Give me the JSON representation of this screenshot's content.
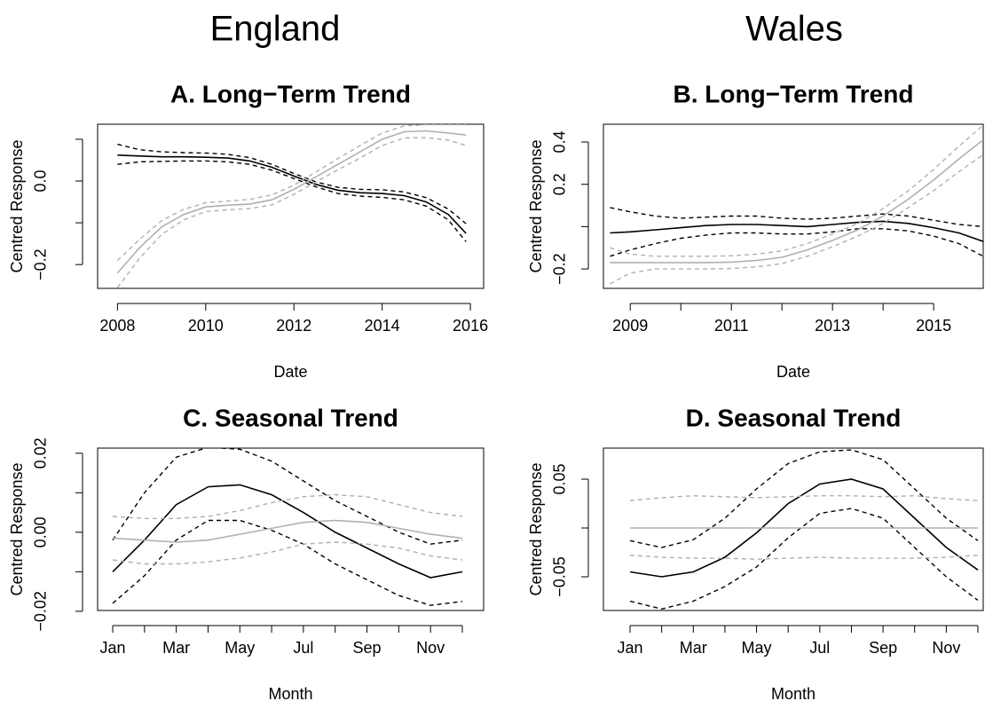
{
  "column_titles": [
    "England",
    "Wales"
  ],
  "chart_data": [
    {
      "type": "line",
      "title": "A. Long−Term Trend",
      "xlabel": "Date",
      "ylabel": "Centred Response",
      "x": [
        2008,
        2008.5,
        2009,
        2009.5,
        2010,
        2010.5,
        2011,
        2011.5,
        2012,
        2012.5,
        2013,
        2013.5,
        2014,
        2014.5,
        2015,
        2015.5,
        2015.9
      ],
      "xlim": [
        2007.55,
        2016.3
      ],
      "xticks": [
        2008,
        2010,
        2012,
        2014,
        2016
      ],
      "ylim": [
        -0.257,
        0.136
      ],
      "yticks": [
        {
          "value": -0.2,
          "label": "−0.2"
        },
        {
          "value": 0,
          "label": "0.0"
        }
      ],
      "yminor_ticks": [
        -0.1,
        0.1
      ],
      "series": [
        {
          "color": "#000000",
          "dashed": false,
          "values": [
            0.062,
            0.06,
            0.058,
            0.058,
            0.057,
            0.055,
            0.048,
            0.033,
            0.012,
            -0.008,
            -0.022,
            -0.028,
            -0.03,
            -0.035,
            -0.05,
            -0.08,
            -0.125
          ]
        },
        {
          "color": "#000000",
          "dashed": true,
          "values": [
            0.088,
            0.075,
            0.07,
            0.068,
            0.067,
            0.064,
            0.056,
            0.04,
            0.018,
            -0.002,
            -0.015,
            -0.02,
            -0.021,
            -0.026,
            -0.04,
            -0.067,
            -0.102
          ]
        },
        {
          "color": "#000000",
          "dashed": true,
          "values": [
            0.04,
            0.046,
            0.047,
            0.048,
            0.048,
            0.046,
            0.04,
            0.026,
            0.006,
            -0.014,
            -0.03,
            -0.036,
            -0.039,
            -0.045,
            -0.06,
            -0.093,
            -0.145
          ]
        },
        {
          "color": "#b0b0b0",
          "dashed": false,
          "values": [
            -0.22,
            -0.16,
            -0.11,
            -0.08,
            -0.062,
            -0.058,
            -0.055,
            -0.045,
            -0.02,
            0.01,
            0.04,
            0.07,
            0.1,
            0.118,
            0.12,
            0.115,
            0.11
          ]
        },
        {
          "color": "#b0b0b0",
          "dashed": true,
          "values": [
            -0.19,
            -0.14,
            -0.095,
            -0.068,
            -0.052,
            -0.048,
            -0.044,
            -0.033,
            -0.01,
            0.022,
            0.054,
            0.085,
            0.115,
            0.132,
            0.135,
            0.135,
            0.135
          ]
        },
        {
          "color": "#b0b0b0",
          "dashed": true,
          "values": [
            -0.255,
            -0.185,
            -0.128,
            -0.093,
            -0.073,
            -0.069,
            -0.066,
            -0.057,
            -0.032,
            -0.002,
            0.027,
            0.055,
            0.085,
            0.103,
            0.104,
            0.098,
            0.085
          ]
        }
      ]
    },
    {
      "type": "line",
      "title": "B. Long−Term Trend",
      "xlabel": "Date",
      "ylabel": "Centred Response",
      "x": [
        2008.6,
        2009,
        2009.5,
        2010,
        2010.5,
        2011,
        2011.5,
        2012,
        2012.5,
        2013,
        2013.5,
        2014,
        2014.5,
        2015,
        2015.5,
        2015.98
      ],
      "xlim": [
        2008.47,
        2015.98
      ],
      "xticks": [
        2009,
        2011,
        2013,
        2015
      ],
      "xminor_ticks": [
        2010,
        2012,
        2014
      ],
      "ylim": [
        -0.292,
        0.484
      ],
      "yticks": [
        {
          "value": -0.2,
          "label": "−0.2"
        },
        0.2,
        0.4
      ],
      "yminor_ticks": [
        0
      ],
      "series": [
        {
          "color": "#000000",
          "dashed": false,
          "values": [
            -0.03,
            -0.025,
            -0.015,
            -0.005,
            0.005,
            0.01,
            0.01,
            0.005,
            0.0,
            0.01,
            0.02,
            0.025,
            0.015,
            -0.005,
            -0.03,
            -0.07
          ]
        },
        {
          "color": "#000000",
          "dashed": true,
          "values": [
            0.09,
            0.07,
            0.05,
            0.04,
            0.045,
            0.05,
            0.05,
            0.04,
            0.035,
            0.04,
            0.05,
            0.06,
            0.05,
            0.03,
            0.01,
            0.0
          ]
        },
        {
          "color": "#000000",
          "dashed": true,
          "values": [
            -0.14,
            -0.11,
            -0.08,
            -0.055,
            -0.04,
            -0.03,
            -0.03,
            -0.035,
            -0.035,
            -0.025,
            -0.01,
            -0.01,
            -0.02,
            -0.045,
            -0.08,
            -0.14
          ]
        },
        {
          "color": "#b0b0b0",
          "dashed": false,
          "values": [
            -0.17,
            -0.17,
            -0.17,
            -0.17,
            -0.17,
            -0.168,
            -0.16,
            -0.145,
            -0.11,
            -0.065,
            -0.015,
            0.05,
            0.13,
            0.22,
            0.32,
            0.41
          ]
        },
        {
          "color": "#b0b0b0",
          "dashed": true,
          "values": [
            -0.1,
            -0.13,
            -0.14,
            -0.14,
            -0.14,
            -0.138,
            -0.13,
            -0.115,
            -0.08,
            -0.035,
            0.015,
            0.085,
            0.17,
            0.27,
            0.38,
            0.48
          ]
        },
        {
          "color": "#b0b0b0",
          "dashed": true,
          "values": [
            -0.27,
            -0.22,
            -0.2,
            -0.2,
            -0.2,
            -0.198,
            -0.19,
            -0.175,
            -0.14,
            -0.095,
            -0.045,
            0.015,
            0.09,
            0.17,
            0.26,
            0.34
          ]
        }
      ]
    },
    {
      "type": "line",
      "title": "C. Seasonal Trend",
      "xlabel": "Month",
      "ylabel": "Centred Response",
      "categories": [
        "Jan",
        null,
        "Mar",
        null,
        "May",
        null,
        "Jul",
        null,
        "Sep",
        null,
        "Nov",
        null
      ],
      "ylim": [
        -0.0198,
        0.0213
      ],
      "yticks": [
        {
          "value": -0.02,
          "label": "−0.02"
        },
        {
          "value": 0,
          "label": "0.00"
        },
        0.02
      ],
      "yminor_ticks": [
        -0.01,
        0.01
      ],
      "series": [
        {
          "color": "#000000",
          "dashed": false,
          "values": [
            -0.01,
            -0.002,
            0.007,
            0.0115,
            0.012,
            0.0095,
            0.005,
            0.0,
            -0.004,
            -0.008,
            -0.0115,
            -0.01
          ]
        },
        {
          "color": "#000000",
          "dashed": true,
          "values": [
            -0.002,
            0.01,
            0.019,
            0.0215,
            0.021,
            0.018,
            0.013,
            0.008,
            0.004,
            0.0,
            -0.003,
            -0.002
          ]
        },
        {
          "color": "#000000",
          "dashed": true,
          "values": [
            -0.018,
            -0.011,
            -0.002,
            0.003,
            0.003,
            0.0005,
            -0.003,
            -0.008,
            -0.012,
            -0.016,
            -0.0185,
            -0.0175
          ]
        },
        {
          "color": "#b0b0b0",
          "dashed": false,
          "values": [
            -0.0015,
            -0.002,
            -0.0025,
            -0.002,
            -0.0005,
            0.001,
            0.0025,
            0.003,
            0.0025,
            0.001,
            -0.0005,
            -0.0015
          ]
        },
        {
          "color": "#b0b0b0",
          "dashed": true,
          "values": [
            0.004,
            0.0035,
            0.0035,
            0.004,
            0.0055,
            0.0075,
            0.009,
            0.0095,
            0.009,
            0.007,
            0.005,
            0.004
          ]
        },
        {
          "color": "#b0b0b0",
          "dashed": true,
          "values": [
            -0.007,
            -0.008,
            -0.008,
            -0.0075,
            -0.0065,
            -0.005,
            -0.003,
            -0.0025,
            -0.003,
            -0.004,
            -0.006,
            -0.007
          ]
        }
      ]
    },
    {
      "type": "line",
      "title": "D. Seasonal Trend",
      "xlabel": "Month",
      "ylabel": "Centred Response",
      "categories": [
        "Jan",
        null,
        "Mar",
        null,
        "May",
        null,
        "Jul",
        null,
        "Sep",
        null,
        "Nov",
        null
      ],
      "ylim": [
        -0.0845,
        0.0818
      ],
      "yticks": [
        {
          "value": -0.05,
          "label": "−0.05"
        },
        0.05
      ],
      "yminor_ticks": [
        0
      ],
      "series": [
        {
          "color": "#000000",
          "dashed": false,
          "values": [
            -0.045,
            -0.05,
            -0.045,
            -0.03,
            -0.005,
            0.025,
            0.045,
            0.05,
            0.04,
            0.01,
            -0.02,
            -0.043
          ]
        },
        {
          "color": "#000000",
          "dashed": true,
          "values": [
            -0.013,
            -0.02,
            -0.012,
            0.01,
            0.04,
            0.066,
            0.078,
            0.08,
            0.07,
            0.04,
            0.01,
            -0.013
          ]
        },
        {
          "color": "#000000",
          "dashed": true,
          "values": [
            -0.075,
            -0.083,
            -0.075,
            -0.06,
            -0.04,
            -0.01,
            0.015,
            0.02,
            0.01,
            -0.02,
            -0.05,
            -0.074
          ]
        },
        {
          "color": "#b0b0b0",
          "dashed": false,
          "values": [
            0,
            0,
            0,
            0,
            0,
            0,
            0,
            0,
            0,
            0,
            0,
            0
          ]
        },
        {
          "color": "#b0b0b0",
          "dashed": true,
          "values": [
            0.028,
            0.031,
            0.033,
            0.032,
            0.031,
            0.032,
            0.033,
            0.033,
            0.032,
            0.033,
            0.03,
            0.028
          ]
        },
        {
          "color": "#b0b0b0",
          "dashed": true,
          "values": [
            -0.028,
            -0.03,
            -0.031,
            -0.031,
            -0.032,
            -0.031,
            -0.03,
            -0.031,
            -0.031,
            -0.031,
            -0.03,
            -0.028
          ]
        }
      ]
    }
  ]
}
